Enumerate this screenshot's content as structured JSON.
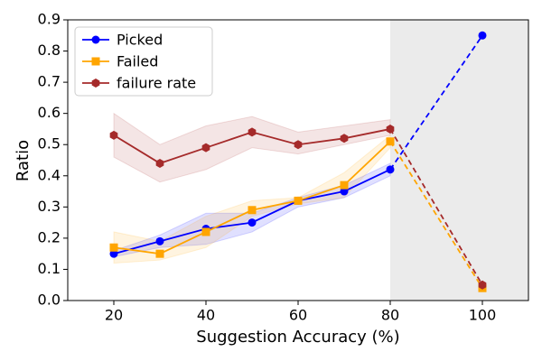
{
  "chart_data": {
    "type": "line",
    "x_label": "Suggestion Accuracy (%)",
    "y_label": "Ratio",
    "x": [
      20,
      30,
      40,
      50,
      60,
      70,
      80,
      100
    ],
    "series": [
      {
        "name": "Picked",
        "color": "#0000ff",
        "marker": "circle",
        "values": [
          0.15,
          0.19,
          0.23,
          0.25,
          0.32,
          0.35,
          0.42,
          0.85
        ],
        "band_low": [
          0.14,
          0.17,
          0.18,
          0.22,
          0.3,
          0.33,
          0.4,
          null
        ],
        "band_high": [
          0.16,
          0.21,
          0.28,
          0.28,
          0.33,
          0.37,
          0.44,
          null
        ]
      },
      {
        "name": "Failed",
        "color": "#ffa500",
        "marker": "square",
        "values": [
          0.17,
          0.15,
          0.22,
          0.29,
          0.32,
          0.37,
          0.51,
          0.04
        ],
        "band_low": [
          0.12,
          0.13,
          0.17,
          0.27,
          0.31,
          0.33,
          0.49,
          null
        ],
        "band_high": [
          0.22,
          0.19,
          0.27,
          0.32,
          0.33,
          0.41,
          0.53,
          null
        ]
      },
      {
        "name": "failure rate",
        "color": "#a52a2a",
        "marker": "hexagon",
        "values": [
          0.53,
          0.44,
          0.49,
          0.54,
          0.5,
          0.52,
          0.55,
          0.05
        ],
        "band_low": [
          0.46,
          0.38,
          0.42,
          0.49,
          0.47,
          0.5,
          0.53,
          null
        ],
        "band_high": [
          0.6,
          0.5,
          0.56,
          0.59,
          0.54,
          0.56,
          0.58,
          null
        ]
      }
    ],
    "shaded_region": [
      80,
      110
    ],
    "xlim": [
      10,
      110
    ],
    "xticks": [
      20,
      40,
      60,
      80,
      100
    ],
    "ylim": [
      0,
      0.9
    ],
    "yticks": [
      {
        "value": 0,
        "label": "0.0"
      },
      0.1,
      0.2,
      0.3,
      0.4,
      0.5,
      0.6,
      0.7,
      0.8,
      0.9
    ],
    "legend": "upper left"
  }
}
